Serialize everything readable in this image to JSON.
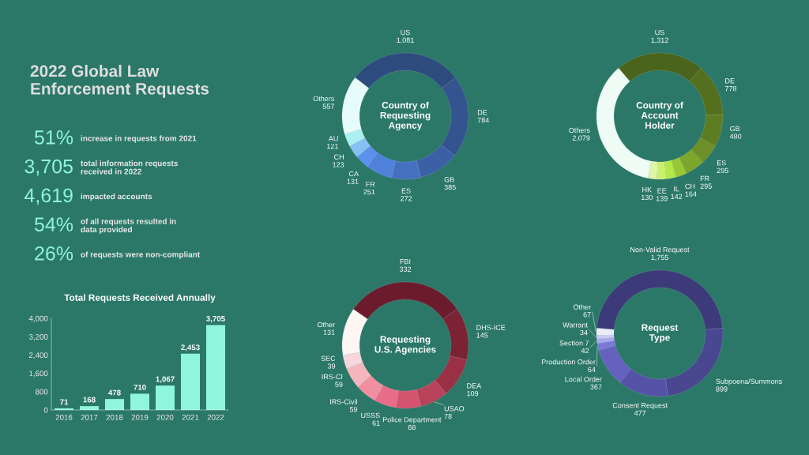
{
  "chart_data": [
    {
      "type": "other",
      "title": "2022 Global Law\nEnforcement Requests",
      "annotations": [
        "51%",
        "increase in requests from 2021",
        "3,705",
        "total information requests\nreceived in 2022",
        "4,619",
        "impacted accounts",
        "54%",
        "of all requests resulted in\ndata provided",
        "26%",
        "of requests were non-compliant"
      ]
    },
    {
      "type": "bar",
      "title": "Total Requests Received Annually",
      "categories": [
        "2016",
        "2017",
        "2018",
        "2019",
        "2020",
        "2021",
        "2022"
      ],
      "values": [
        71,
        168,
        478,
        710,
        1067,
        2453,
        3705
      ],
      "value_labels": [
        "71",
        "168",
        "478",
        "710",
        "1,067",
        "2,453",
        "3,705"
      ],
      "color": "#8ff5dc",
      "ylim": [
        0,
        4000
      ],
      "yticks": [
        0,
        800,
        {
          "value": 1600,
          "label": "1,600"
        },
        {
          "value": 2400,
          "label": "2,400"
        },
        {
          "value": 3200,
          "label": "3,200"
        },
        {
          "value": 4000,
          "label": "4,000"
        }
      ]
    },
    {
      "type": "donut",
      "title": "Country of\nRequesting\nAgency",
      "categories": [
        "US",
        "DE",
        "GB",
        "ES",
        "FR",
        "CA",
        "CH",
        "AU",
        "Others"
      ],
      "values": [
        1081,
        784,
        385,
        272,
        251,
        131,
        123,
        121,
        557
      ],
      "value_labels": [
        "1,081",
        "784",
        "385",
        "272",
        "251",
        "131",
        "123",
        "121",
        "557"
      ],
      "colors": [
        "#2d4b7c",
        "#34548f",
        "#3b60a6",
        "#4570c0",
        "#4f80da",
        "#5b90ee",
        "#86c0f2",
        "#aaf0f0",
        "#e6fbfa"
      ]
    },
    {
      "type": "donut",
      "title": "Country of\nAccount\nHolder",
      "categories": [
        "US",
        "DE",
        "GB",
        "ES",
        "FR",
        "CH",
        "IL",
        "EE",
        "HK",
        "Others"
      ],
      "values": [
        1312,
        778,
        480,
        295,
        295,
        164,
        142,
        139,
        130,
        2079
      ],
      "value_labels": [
        "1,312",
        "778",
        "480",
        "295",
        "295",
        "164",
        "142",
        "139",
        "130",
        "2,079"
      ],
      "colors": [
        "#4b641c",
        "#54701f",
        "#5e7d22",
        "#6c8f27",
        "#7da62c",
        "#98c835",
        "#b3e84a",
        "#cbf06e",
        "#def6a6",
        "#eefcf5"
      ]
    },
    {
      "type": "donut",
      "title": "Requesting\nU.S. Agencies",
      "categories": [
        "FBI",
        "DHS-ICE",
        "DEA",
        "USAO",
        "Police Department",
        "USSS",
        "IRS-Civil",
        "IRS-CI",
        "SEC",
        "Other"
      ],
      "values": [
        332,
        145,
        109,
        78,
        68,
        61,
        59,
        59,
        39,
        131
      ],
      "value_labels": [
        "332",
        "145",
        "109",
        "78",
        "68",
        "61",
        "59",
        "59",
        "39",
        "131"
      ],
      "colors": [
        "#6b1c2c",
        "#7b2334",
        "#9a3045",
        "#b8435a",
        "#d45470",
        "#e86b88",
        "#f08fa0",
        "#f5b5bd",
        "#f7d6dc",
        "#fdf6f3"
      ]
    },
    {
      "type": "donut",
      "title": "Request\nType",
      "categories": [
        "Non-Valid Request",
        "Subpoena/Summons",
        "Consent Request",
        "Local Order",
        "Production Order",
        "Section 7",
        "Warrant",
        "Other"
      ],
      "values": [
        1755,
        899,
        477,
        367,
        64,
        42,
        34,
        67
      ],
      "value_labels": [
        "1,755",
        "899",
        "477",
        "367",
        "64",
        "42",
        "34",
        "67"
      ],
      "colors": [
        "#3c3a78",
        "#48478f",
        "#5553a8",
        "#6462be",
        "#7a78d8",
        "#a9a8ee",
        "#c8c8f5",
        "#ececfb"
      ]
    }
  ]
}
